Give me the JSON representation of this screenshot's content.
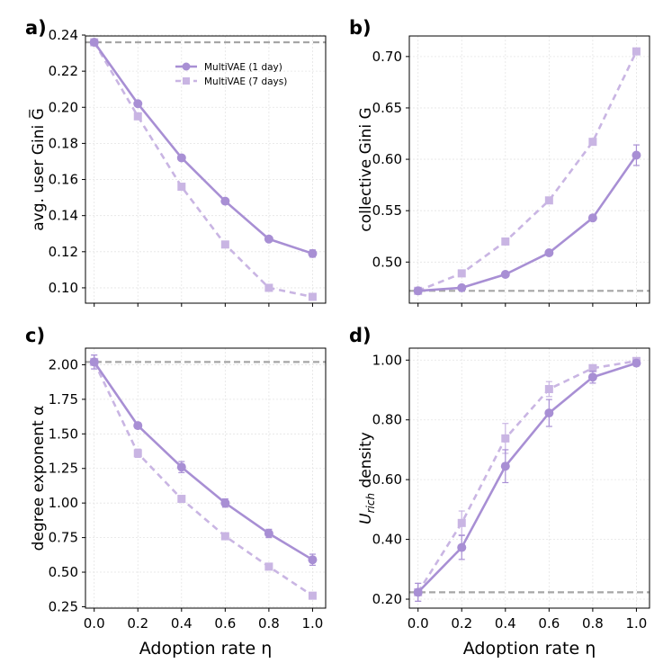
{
  "chart_data": [
    {
      "type": "line",
      "panel_label": "a)",
      "ylabel": "avg. user Gini G̅",
      "xlabel": "",
      "x": [
        0.0,
        0.2,
        0.4,
        0.6,
        0.8,
        1.0
      ],
      "xticks": [
        "0.0",
        "0.2",
        "0.4",
        "0.6",
        "0.8",
        "1.0"
      ],
      "xlim": [
        -0.04,
        1.06
      ],
      "ylim": [
        0.0915,
        0.2395
      ],
      "yticks": [
        0.1,
        0.12,
        0.14,
        0.16,
        0.18,
        0.2,
        0.22,
        0.24
      ],
      "ytick_labels": [
        "0.10",
        "0.12",
        "0.14",
        "0.16",
        "0.18",
        "0.20",
        "0.22",
        "0.24"
      ],
      "baseline": 0.236,
      "grid": true,
      "legend": "top-center",
      "series": [
        {
          "name": "MultiVAE (1 day)",
          "values": [
            0.236,
            0.202,
            0.172,
            0.148,
            0.127,
            0.119
          ],
          "errors": [
            0.001,
            0.001,
            0.001,
            0.001,
            0.001,
            0.002
          ],
          "marker": "circle",
          "style": "solid",
          "color": "#a88fd4"
        },
        {
          "name": "MultiVAE (7 days)",
          "values": [
            0.236,
            0.195,
            0.156,
            0.124,
            0.1,
            0.095
          ],
          "errors": [
            0.001,
            0.001,
            0.001,
            0.001,
            0.001,
            0.001
          ],
          "marker": "square",
          "style": "dashed",
          "color": "#c9b5e3"
        }
      ]
    },
    {
      "type": "line",
      "panel_label": "b)",
      "ylabel": "collective Gini G",
      "xlabel": "",
      "x": [
        0.0,
        0.2,
        0.4,
        0.6,
        0.8,
        1.0
      ],
      "xticks": [
        "0.0",
        "0.2",
        "0.4",
        "0.6",
        "0.8",
        "1.0"
      ],
      "xlim": [
        -0.04,
        1.06
      ],
      "ylim": [
        0.46,
        0.72
      ],
      "yticks": [
        0.5,
        0.55,
        0.6,
        0.65,
        0.7
      ],
      "ytick_labels": [
        "0.50",
        "0.55",
        "0.60",
        "0.65",
        "0.70"
      ],
      "baseline": 0.472,
      "grid": true,
      "series": [
        {
          "name": "MultiVAE (1 day)",
          "values": [
            0.472,
            0.475,
            0.488,
            0.509,
            0.543,
            0.604
          ],
          "errors": [
            0.001,
            0.001,
            0.001,
            0.002,
            0.002,
            0.01
          ],
          "marker": "circle",
          "style": "solid",
          "color": "#a88fd4"
        },
        {
          "name": "MultiVAE (7 days)",
          "values": [
            0.472,
            0.489,
            0.52,
            0.56,
            0.617,
            0.705
          ],
          "errors": [
            0.001,
            0.001,
            0.001,
            0.002,
            0.002,
            0.002
          ],
          "marker": "square",
          "style": "dashed",
          "color": "#c9b5e3"
        }
      ]
    },
    {
      "type": "line",
      "panel_label": "c)",
      "ylabel": "degree exponent α",
      "xlabel": "Adoption rate η",
      "x": [
        0.0,
        0.2,
        0.4,
        0.6,
        0.8,
        1.0
      ],
      "xticks": [
        "0.0",
        "0.2",
        "0.4",
        "0.6",
        "0.8",
        "1.0"
      ],
      "xlim": [
        -0.04,
        1.06
      ],
      "ylim": [
        0.24,
        2.12
      ],
      "yticks": [
        0.25,
        0.5,
        0.75,
        1.0,
        1.25,
        1.5,
        1.75,
        2.0
      ],
      "ytick_labels": [
        "0.25",
        "0.50",
        "0.75",
        "1.00",
        "1.25",
        "1.50",
        "1.75",
        "2.00"
      ],
      "baseline": 2.02,
      "grid": true,
      "series": [
        {
          "name": "MultiVAE (1 day)",
          "values": [
            2.02,
            1.56,
            1.26,
            1.0,
            0.78,
            0.59
          ],
          "errors": [
            0.05,
            0.02,
            0.04,
            0.03,
            0.03,
            0.04
          ],
          "marker": "circle",
          "style": "solid",
          "color": "#a88fd4"
        },
        {
          "name": "MultiVAE (7 days)",
          "values": [
            2.02,
            1.36,
            1.03,
            0.76,
            0.54,
            0.33
          ],
          "errors": [
            0.05,
            0.03,
            0.02,
            0.02,
            0.02,
            0.02
          ],
          "marker": "square",
          "style": "dashed",
          "color": "#c9b5e3"
        }
      ]
    },
    {
      "type": "line",
      "panel_label": "d)",
      "ylabel": "U_rich density",
      "ylabel_main": "U",
      "ylabel_sub": "rich",
      "ylabel_rest": " density",
      "xlabel": "Adoption rate η",
      "x": [
        0.0,
        0.2,
        0.4,
        0.6,
        0.8,
        1.0
      ],
      "xticks": [
        "0.0",
        "0.2",
        "0.4",
        "0.6",
        "0.8",
        "1.0"
      ],
      "xlim": [
        -0.04,
        1.06
      ],
      "ylim": [
        0.17,
        1.04
      ],
      "yticks": [
        0.2,
        0.4,
        0.6,
        0.8,
        1.0
      ],
      "ytick_labels": [
        "0.20",
        "0.40",
        "0.60",
        "0.80",
        "1.00"
      ],
      "baseline": 0.223,
      "grid": true,
      "series": [
        {
          "name": "MultiVAE (1 day)",
          "values": [
            0.223,
            0.373,
            0.645,
            0.823,
            0.943,
            0.99
          ],
          "errors": [
            0.03,
            0.04,
            0.055,
            0.045,
            0.02,
            0.01
          ],
          "marker": "circle",
          "style": "solid",
          "color": "#a88fd4"
        },
        {
          "name": "MultiVAE (7 days)",
          "values": [
            0.223,
            0.455,
            0.738,
            0.903,
            0.973,
            0.997
          ],
          "errors": [
            0.03,
            0.04,
            0.05,
            0.025,
            0.01,
            0.005
          ],
          "marker": "square",
          "style": "dashed",
          "color": "#c9b5e3"
        }
      ]
    }
  ],
  "colors": {
    "series_1day": "#a88fd4",
    "series_7days": "#c9b5e3",
    "baseline": "#a6a6a6",
    "grid": "#e4e4e4"
  }
}
